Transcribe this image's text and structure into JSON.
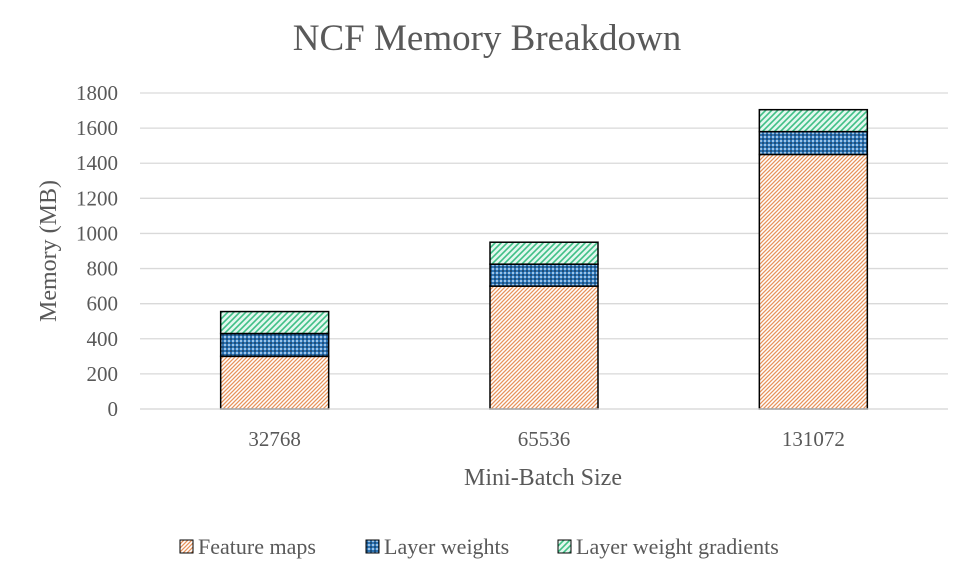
{
  "chart_data": {
    "type": "bar",
    "stacked": true,
    "title": "NCF Memory Breakdown",
    "xlabel": "Mini-Batch Size",
    "ylabel": "Memory (MB)",
    "ylim": [
      0,
      1800
    ],
    "yticks": [
      0,
      200,
      400,
      600,
      800,
      1000,
      1200,
      1400,
      1600,
      1800
    ],
    "categories": [
      "32768",
      "65536",
      "131072"
    ],
    "grid": true,
    "legend_position": "bottom",
    "series": [
      {
        "name": "Feature maps",
        "values": [
          300,
          700,
          1450
        ],
        "color": "#f4b183",
        "pattern": "diagonal-hatch"
      },
      {
        "name": "Layer weights",
        "values": [
          130,
          125,
          130
        ],
        "color": "#2e75b6",
        "pattern": "dotted-grid"
      },
      {
        "name": "Layer weight gradients",
        "values": [
          125,
          125,
          125
        ],
        "color": "#70d6a8",
        "pattern": "wave"
      }
    ]
  }
}
